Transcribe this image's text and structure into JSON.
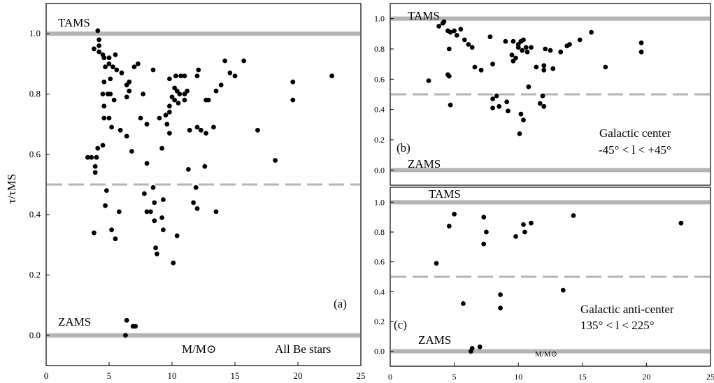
{
  "chart_data": [
    {
      "id": "a",
      "type": "scatter",
      "panel_label": "(a)",
      "annotation": [
        "All Be stars"
      ],
      "xlabel": "M/M⊙",
      "ylabel": "τ/τMS",
      "xlim": [
        0,
        25
      ],
      "ylim": [
        -0.1,
        1.1
      ],
      "xticks": [
        0,
        5,
        10,
        15,
        20,
        25
      ],
      "yticks": [
        0.0,
        0.2,
        0.4,
        0.6,
        0.8,
        1.0
      ],
      "reference_lines": [
        {
          "label": "TAMS",
          "y": 1.0,
          "style": "solid"
        },
        {
          "label": "ZAMS",
          "y": 0.0,
          "style": "solid"
        },
        {
          "label": "",
          "y": 0.5,
          "style": "dashed"
        }
      ],
      "points": [
        [
          4.1,
          1.01
        ],
        [
          4.2,
          0.98
        ],
        [
          4.2,
          0.96
        ],
        [
          3.8,
          0.95
        ],
        [
          4.5,
          0.93
        ],
        [
          4.2,
          0.94
        ],
        [
          4.6,
          0.92
        ],
        [
          5.0,
          0.92
        ],
        [
          5.5,
          0.93
        ],
        [
          4.7,
          0.89
        ],
        [
          5.3,
          0.89
        ],
        [
          5.6,
          0.88
        ],
        [
          5.0,
          0.9
        ],
        [
          4.6,
          0.84
        ],
        [
          5.1,
          0.85
        ],
        [
          6.0,
          0.87
        ],
        [
          7.0,
          0.89
        ],
        [
          7.3,
          0.9
        ],
        [
          6.4,
          0.83
        ],
        [
          6.6,
          0.84
        ],
        [
          4.5,
          0.8
        ],
        [
          4.9,
          0.8
        ],
        [
          5.1,
          0.8
        ],
        [
          5.4,
          0.78
        ],
        [
          6.4,
          0.79
        ],
        [
          6.6,
          0.81
        ],
        [
          7.7,
          0.8
        ],
        [
          8.5,
          0.88
        ],
        [
          9.8,
          0.85
        ],
        [
          10.3,
          0.86
        ],
        [
          10.7,
          0.86
        ],
        [
          11.0,
          0.86
        ],
        [
          10.2,
          0.82
        ],
        [
          10.4,
          0.81
        ],
        [
          10.6,
          0.8
        ],
        [
          11.0,
          0.8
        ],
        [
          11.2,
          0.81
        ],
        [
          12.1,
          0.88
        ],
        [
          12.0,
          0.86
        ],
        [
          10.0,
          0.79
        ],
        [
          10.2,
          0.78
        ],
        [
          10.5,
          0.77
        ],
        [
          11.0,
          0.78
        ],
        [
          12.7,
          0.78
        ],
        [
          12.9,
          0.78
        ],
        [
          13.5,
          0.81
        ],
        [
          13.9,
          0.83
        ],
        [
          14.2,
          0.91
        ],
        [
          14.6,
          0.87
        ],
        [
          15.0,
          0.86
        ],
        [
          15.7,
          0.91
        ],
        [
          19.6,
          0.84
        ],
        [
          19.6,
          0.78
        ],
        [
          22.7,
          0.86
        ],
        [
          4.6,
          0.76
        ],
        [
          4.6,
          0.72
        ],
        [
          5.0,
          0.72
        ],
        [
          5.2,
          0.69
        ],
        [
          5.9,
          0.68
        ],
        [
          6.4,
          0.66
        ],
        [
          7.5,
          0.72
        ],
        [
          8.0,
          0.7
        ],
        [
          9.0,
          0.72
        ],
        [
          9.5,
          0.73
        ],
        [
          9.8,
          0.74
        ],
        [
          9.8,
          0.76
        ],
        [
          9.6,
          0.7
        ],
        [
          11.4,
          0.68
        ],
        [
          12.0,
          0.69
        ],
        [
          12.3,
          0.68
        ],
        [
          12.7,
          0.67
        ],
        [
          13.3,
          0.69
        ],
        [
          9.2,
          0.62
        ],
        [
          9.8,
          0.67
        ],
        [
          6.8,
          0.61
        ],
        [
          4.5,
          0.63
        ],
        [
          4.1,
          0.62
        ],
        [
          4.0,
          0.59
        ],
        [
          3.6,
          0.59
        ],
        [
          3.3,
          0.59
        ],
        [
          3.9,
          0.56
        ],
        [
          3.9,
          0.54
        ],
        [
          8.0,
          0.57
        ],
        [
          11.3,
          0.55
        ],
        [
          12.6,
          0.56
        ],
        [
          18.2,
          0.58
        ],
        [
          16.8,
          0.68
        ],
        [
          4.8,
          0.48
        ],
        [
          4.7,
          0.43
        ],
        [
          5.8,
          0.41
        ],
        [
          7.8,
          0.47
        ],
        [
          8.0,
          0.41
        ],
        [
          8.3,
          0.41
        ],
        [
          8.5,
          0.49
        ],
        [
          8.6,
          0.44
        ],
        [
          8.6,
          0.38
        ],
        [
          9.3,
          0.45
        ],
        [
          9.2,
          0.39
        ],
        [
          9.3,
          0.35
        ],
        [
          8.7,
          0.29
        ],
        [
          8.8,
          0.27
        ],
        [
          10.4,
          0.33
        ],
        [
          10.1,
          0.24
        ],
        [
          11.9,
          0.49
        ],
        [
          11.7,
          0.44
        ],
        [
          12.0,
          0.42
        ],
        [
          13.5,
          0.41
        ],
        [
          3.8,
          0.34
        ],
        [
          5.2,
          0.35
        ],
        [
          5.5,
          0.32
        ],
        [
          6.4,
          0.05
        ],
        [
          6.3,
          0.0
        ],
        [
          6.9,
          0.03
        ],
        [
          7.1,
          0.03
        ]
      ]
    },
    {
      "id": "b",
      "type": "scatter",
      "panel_label": "(b)",
      "annotation": [
        "Galactic center",
        "-45° < l < +45°"
      ],
      "xlabel": "",
      "ylabel": "",
      "xlim": [
        0,
        25
      ],
      "ylim": [
        -0.1,
        1.1
      ],
      "xticks": [
        0,
        5,
        10,
        15,
        20,
        25
      ],
      "yticks": [
        0.0,
        0.2,
        0.4,
        0.6,
        0.8,
        1.0
      ],
      "reference_lines": [
        {
          "label": "TAMS",
          "y": 1.0,
          "style": "solid"
        },
        {
          "label": "ZAMS",
          "y": 0.0,
          "style": "solid"
        },
        {
          "label": "",
          "y": 0.5,
          "style": "dashed"
        }
      ],
      "points": [
        [
          4.1,
          0.97
        ],
        [
          4.2,
          0.98
        ],
        [
          3.8,
          0.95
        ],
        [
          4.5,
          0.92
        ],
        [
          4.7,
          0.91
        ],
        [
          5.0,
          0.92
        ],
        [
          5.5,
          0.93
        ],
        [
          5.2,
          0.89
        ],
        [
          5.8,
          0.86
        ],
        [
          6.1,
          0.83
        ],
        [
          6.4,
          0.81
        ],
        [
          4.6,
          0.8
        ],
        [
          7.8,
          0.88
        ],
        [
          9.0,
          0.85
        ],
        [
          9.6,
          0.85
        ],
        [
          10.0,
          0.83
        ],
        [
          10.2,
          0.85
        ],
        [
          10.4,
          0.86
        ],
        [
          10.0,
          0.81
        ],
        [
          10.3,
          0.79
        ],
        [
          10.6,
          0.81
        ],
        [
          11.0,
          0.81
        ],
        [
          10.7,
          0.78
        ],
        [
          12.1,
          0.8
        ],
        [
          12.5,
          0.79
        ],
        [
          13.3,
          0.78
        ],
        [
          13.8,
          0.82
        ],
        [
          14.0,
          0.83
        ],
        [
          14.8,
          0.86
        ],
        [
          15.7,
          0.91
        ],
        [
          19.6,
          0.84
        ],
        [
          19.6,
          0.78
        ],
        [
          9.5,
          0.76
        ],
        [
          9.8,
          0.74
        ],
        [
          9.6,
          0.72
        ],
        [
          8.0,
          0.7
        ],
        [
          6.6,
          0.68
        ],
        [
          7.1,
          0.66
        ],
        [
          11.4,
          0.68
        ],
        [
          12.0,
          0.69
        ],
        [
          12.0,
          0.66
        ],
        [
          12.7,
          0.67
        ],
        [
          16.8,
          0.68
        ],
        [
          3.0,
          0.59
        ],
        [
          4.5,
          0.63
        ],
        [
          4.6,
          0.62
        ],
        [
          10.8,
          0.55
        ],
        [
          8.0,
          0.47
        ],
        [
          8.3,
          0.49
        ],
        [
          8.5,
          0.42
        ],
        [
          8.0,
          0.41
        ],
        [
          9.1,
          0.45
        ],
        [
          9.2,
          0.39
        ],
        [
          10.2,
          0.37
        ],
        [
          10.4,
          0.33
        ],
        [
          10.1,
          0.24
        ],
        [
          11.9,
          0.49
        ],
        [
          11.7,
          0.44
        ],
        [
          12.0,
          0.42
        ],
        [
          4.7,
          0.43
        ]
      ]
    },
    {
      "id": "c",
      "type": "scatter",
      "panel_label": "(c)",
      "annotation": [
        "Galactic anti-center",
        "135° < l < 225°"
      ],
      "xlabel": "M/M⊙",
      "ylabel": "",
      "xlim": [
        0,
        25
      ],
      "ylim": [
        -0.1,
        1.1
      ],
      "xticks": [
        0,
        5,
        10,
        15,
        20,
        25
      ],
      "yticks": [
        0.0,
        0.2,
        0.4,
        0.6,
        0.8,
        1.0
      ],
      "reference_lines": [
        {
          "label": "TAMS",
          "y": 1.0,
          "style": "solid"
        },
        {
          "label": "ZAMS",
          "y": 0.0,
          "style": "solid"
        },
        {
          "label": "",
          "y": 0.5,
          "style": "dashed"
        }
      ],
      "points": [
        [
          5.0,
          0.92
        ],
        [
          4.6,
          0.84
        ],
        [
          7.3,
          0.9
        ],
        [
          7.5,
          0.8
        ],
        [
          7.3,
          0.72
        ],
        [
          9.8,
          0.77
        ],
        [
          10.4,
          0.85
        ],
        [
          10.5,
          0.8
        ],
        [
          11.0,
          0.86
        ],
        [
          14.3,
          0.91
        ],
        [
          22.7,
          0.86
        ],
        [
          3.6,
          0.59
        ],
        [
          5.7,
          0.32
        ],
        [
          8.6,
          0.38
        ],
        [
          8.6,
          0.29
        ],
        [
          13.5,
          0.41
        ],
        [
          6.3,
          0.0
        ],
        [
          6.4,
          0.02
        ],
        [
          7.0,
          0.03
        ]
      ]
    }
  ]
}
